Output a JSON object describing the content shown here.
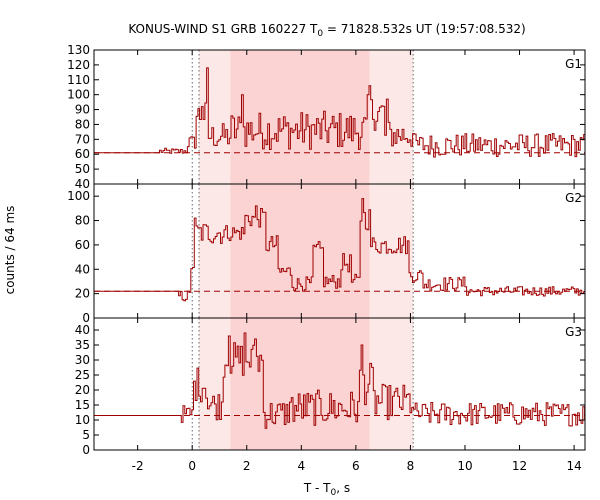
{
  "chart_data": {
    "type": "line",
    "title_main": "KONUS-WIND S1 GRB 160227 T",
    "title_sub": "0",
    "title_rest": " = 71828.532s UT (19:57:08.532)",
    "xlabel_main": "T - T",
    "xlabel_sub": "0",
    "xlabel_rest": ", s",
    "ylabel": "counts / 64 ms",
    "xlim": [
      -3.6,
      14.4
    ],
    "x_ticks": [
      -2,
      0,
      2,
      4,
      6,
      8,
      10,
      12,
      14
    ],
    "x_tick_labels": [
      "-2",
      "0",
      "2",
      "4",
      "6",
      "8",
      "10",
      "12",
      "14"
    ],
    "colors": {
      "series": "#a00000",
      "shade_light": "#fde8e8",
      "shade_dark": "#fbd3d3"
    },
    "shaded_intervals": [
      {
        "from": 0.25,
        "to": 8.1,
        "shade": "light"
      },
      {
        "from": 1.4,
        "to": 6.5,
        "shade": "dark"
      }
    ],
    "marker_lines": [
      0.0,
      0.25,
      8.1
    ],
    "panels": [
      {
        "name": "G1",
        "ylim": [
          40,
          130
        ],
        "y_ticks": [
          40,
          50,
          60,
          70,
          80,
          90,
          100,
          110,
          120,
          130
        ],
        "y_tick_labels": [
          "40",
          "50",
          "60",
          "70",
          "80",
          "90",
          "100",
          "110",
          "120",
          "130"
        ],
        "background": 61,
        "preburst": {
          "from": -3.6,
          "to": -1.2,
          "value": 61
        },
        "segments": [
          {
            "from": -1.2,
            "to": -0.2,
            "base": 62,
            "noise": 2
          },
          {
            "from": -0.2,
            "to": 0.1,
            "base": 68,
            "noise": 5
          },
          {
            "from": 0.1,
            "to": 0.5,
            "base": 86,
            "noise": 10
          },
          {
            "from": 0.5,
            "to": 1.4,
            "base": 72,
            "noise": 9
          },
          {
            "from": 1.4,
            "to": 6.4,
            "base": 76,
            "noise": 13
          },
          {
            "from": 6.4,
            "to": 7.0,
            "base": 88,
            "noise": 12
          },
          {
            "from": 7.0,
            "to": 8.1,
            "base": 73,
            "noise": 10
          },
          {
            "from": 8.1,
            "to": 14.4,
            "base": 66,
            "noise": 8
          }
        ],
        "peaks": [
          {
            "x": 0.35,
            "y": 92
          },
          {
            "x": 0.55,
            "y": 118
          },
          {
            "x": 1.8,
            "y": 100
          },
          {
            "x": 6.5,
            "y": 106
          },
          {
            "x": 7.1,
            "y": 97
          }
        ]
      },
      {
        "name": "G2",
        "ylim": [
          0,
          110
        ],
        "y_ticks": [
          0,
          20,
          40,
          60,
          80,
          100
        ],
        "y_tick_labels": [
          "0",
          "20",
          "40",
          "60",
          "80",
          "100"
        ],
        "background": 22,
        "preburst": {
          "from": -3.6,
          "to": -0.5,
          "value": 22
        },
        "segments": [
          {
            "from": -0.5,
            "to": -0.1,
            "base": 18,
            "noise": 5
          },
          {
            "from": -0.1,
            "to": 0.1,
            "base": 45,
            "noise": 10
          },
          {
            "from": 0.1,
            "to": 1.2,
            "base": 70,
            "noise": 10
          },
          {
            "from": 1.2,
            "to": 1.9,
            "base": 70,
            "noise": 7
          },
          {
            "from": 1.9,
            "to": 2.7,
            "base": 82,
            "noise": 8
          },
          {
            "from": 2.7,
            "to": 3.1,
            "base": 60,
            "noise": 8
          },
          {
            "from": 3.1,
            "to": 3.6,
            "base": 38,
            "noise": 7
          },
          {
            "from": 3.6,
            "to": 4.4,
            "base": 28,
            "noise": 6
          },
          {
            "from": 4.4,
            "to": 4.8,
            "base": 55,
            "noise": 8
          },
          {
            "from": 4.8,
            "to": 5.4,
            "base": 30,
            "noise": 6
          },
          {
            "from": 5.4,
            "to": 5.8,
            "base": 45,
            "noise": 8
          },
          {
            "from": 5.8,
            "to": 6.1,
            "base": 30,
            "noise": 6
          },
          {
            "from": 6.1,
            "to": 6.5,
            "base": 82,
            "noise": 10
          },
          {
            "from": 6.5,
            "to": 7.9,
            "base": 60,
            "noise": 8
          },
          {
            "from": 7.9,
            "to": 8.4,
            "base": 35,
            "noise": 6
          },
          {
            "from": 8.4,
            "to": 10.0,
            "base": 28,
            "noise": 6
          },
          {
            "from": 10.0,
            "to": 14.4,
            "base": 22,
            "noise": 4
          }
        ],
        "peaks": [
          {
            "x": 6.25,
            "y": 98
          },
          {
            "x": 2.3,
            "y": 92
          },
          {
            "x": 0.1,
            "y": 82
          }
        ]
      },
      {
        "name": "G3",
        "ylim": [
          0,
          44
        ],
        "y_ticks": [
          0,
          5,
          10,
          15,
          20,
          25,
          30,
          35,
          40
        ],
        "y_tick_labels": [
          "0",
          "5",
          "10",
          "15",
          "20",
          "25",
          "30",
          "35",
          "40"
        ],
        "background": 11.5,
        "preburst": {
          "from": -3.6,
          "to": -0.4,
          "value": 11.5
        },
        "segments": [
          {
            "from": -0.4,
            "to": 0.0,
            "base": 12,
            "noise": 3
          },
          {
            "from": 0.0,
            "to": 0.5,
            "base": 22,
            "noise": 6
          },
          {
            "from": 0.5,
            "to": 1.1,
            "base": 15,
            "noise": 5
          },
          {
            "from": 1.1,
            "to": 2.6,
            "base": 30,
            "noise": 6
          },
          {
            "from": 2.6,
            "to": 3.5,
            "base": 12,
            "noise": 5
          },
          {
            "from": 3.5,
            "to": 6.1,
            "base": 14,
            "noise": 6
          },
          {
            "from": 6.1,
            "to": 6.6,
            "base": 22,
            "noise": 7
          },
          {
            "from": 6.6,
            "to": 8.1,
            "base": 16,
            "noise": 6
          },
          {
            "from": 8.1,
            "to": 14.4,
            "base": 12,
            "noise": 4
          }
        ],
        "peaks": [
          {
            "x": 1.3,
            "y": 38
          },
          {
            "x": 1.9,
            "y": 39
          },
          {
            "x": 2.3,
            "y": 37
          },
          {
            "x": 6.2,
            "y": 35
          }
        ]
      }
    ]
  }
}
